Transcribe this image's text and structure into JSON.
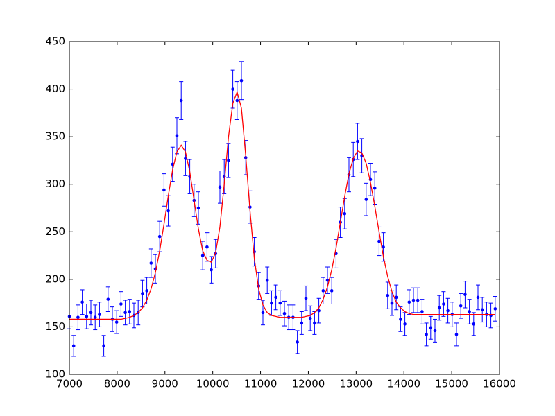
{
  "chart_data": {
    "type": "scatter",
    "xlim": [
      7000,
      16000
    ],
    "ylim": [
      100,
      450
    ],
    "xticks": [
      7000,
      8000,
      9000,
      10000,
      11000,
      12000,
      13000,
      14000,
      15000,
      16000
    ],
    "yticks": [
      100,
      150,
      200,
      250,
      300,
      350,
      400,
      450
    ],
    "grid": false,
    "x": [
      7000,
      7090,
      7180,
      7270,
      7360,
      7450,
      7540,
      7630,
      7720,
      7810,
      7900,
      7990,
      8080,
      8170,
      8260,
      8350,
      8440,
      8530,
      8620,
      8710,
      8800,
      8890,
      8980,
      9070,
      9160,
      9250,
      9340,
      9430,
      9520,
      9610,
      9700,
      9790,
      9880,
      9970,
      10060,
      10150,
      10240,
      10330,
      10420,
      10510,
      10600,
      10690,
      10780,
      10870,
      10960,
      11050,
      11140,
      11230,
      11320,
      11410,
      11500,
      11590,
      11680,
      11770,
      11860,
      11950,
      12040,
      12130,
      12220,
      12310,
      12400,
      12490,
      12580,
      12670,
      12760,
      12850,
      12940,
      13030,
      13120,
      13210,
      13300,
      13390,
      13480,
      13570,
      13660,
      13750,
      13840,
      13930,
      14020,
      14110,
      14200,
      14290,
      14380,
      14470,
      14560,
      14650,
      14740,
      14830,
      14920,
      15010,
      15100,
      15190,
      15280,
      15370,
      15460,
      15550,
      15640,
      15730,
      15820,
      15910
    ],
    "series": [
      {
        "type": "scatter",
        "color": "#0000ff",
        "values": [
          161,
          130,
          160,
          176,
          161,
          165,
          160,
          163,
          130,
          179,
          158,
          155,
          174,
          165,
          166,
          162,
          165,
          185,
          188,
          217,
          211,
          245,
          294,
          272,
          321,
          351,
          388,
          327,
          308,
          283,
          275,
          225,
          234,
          210,
          227,
          297,
          308,
          325,
          400,
          388,
          409,
          328,
          276,
          229,
          193,
          165,
          199,
          175,
          181,
          175,
          164,
          160,
          160,
          134,
          154,
          180,
          159,
          154,
          167,
          188,
          199,
          188,
          227,
          260,
          269,
          310,
          326,
          345,
          330,
          284,
          305,
          296,
          240,
          234,
          183,
          175,
          181,
          158,
          153,
          176,
          178,
          178,
          166,
          142,
          149,
          146,
          170,
          174,
          167,
          163,
          142,
          172,
          184,
          166,
          153,
          181,
          168,
          163,
          162,
          169
        ],
        "errors": [
          13,
          11,
          13,
          13,
          13,
          13,
          13,
          13,
          11,
          13,
          13,
          12,
          13,
          13,
          13,
          13,
          13,
          14,
          14,
          15,
          15,
          16,
          17,
          16,
          18,
          19,
          20,
          18,
          18,
          17,
          17,
          15,
          15,
          14,
          15,
          17,
          18,
          18,
          20,
          20,
          20,
          18,
          17,
          15,
          14,
          13,
          14,
          13,
          13,
          13,
          13,
          13,
          13,
          12,
          12,
          13,
          13,
          12,
          13,
          14,
          14,
          14,
          15,
          16,
          16,
          18,
          18,
          19,
          18,
          17,
          17,
          17,
          15,
          15,
          14,
          13,
          13,
          13,
          12,
          13,
          13,
          13,
          13,
          12,
          12,
          12,
          13,
          13,
          13,
          13,
          12,
          13,
          14,
          13,
          12,
          13,
          13,
          13,
          13,
          13
        ]
      },
      {
        "type": "line",
        "color": "#ff0000",
        "values": [
          158,
          158,
          158,
          158,
          158,
          158,
          158,
          158,
          158,
          158,
          158,
          158,
          158,
          159,
          160,
          162,
          165,
          170,
          178,
          190,
          207,
          230,
          258,
          288,
          315,
          334,
          341,
          334,
          313,
          283,
          253,
          230,
          220,
          218,
          228,
          255,
          300,
          350,
          385,
          397,
          380,
          330,
          272,
          222,
          190,
          173,
          165,
          162,
          161,
          160,
          160,
          160,
          160,
          160,
          160,
          161,
          162,
          165,
          170,
          179,
          192,
          210,
          233,
          260,
          287,
          311,
          327,
          335,
          333,
          322,
          302,
          277,
          250,
          224,
          203,
          187,
          176,
          170,
          166,
          164,
          163,
          163,
          163,
          163,
          163,
          163,
          163,
          163,
          163,
          163,
          163,
          163,
          163,
          163,
          163,
          163,
          163,
          163,
          163,
          163
        ]
      }
    ]
  }
}
